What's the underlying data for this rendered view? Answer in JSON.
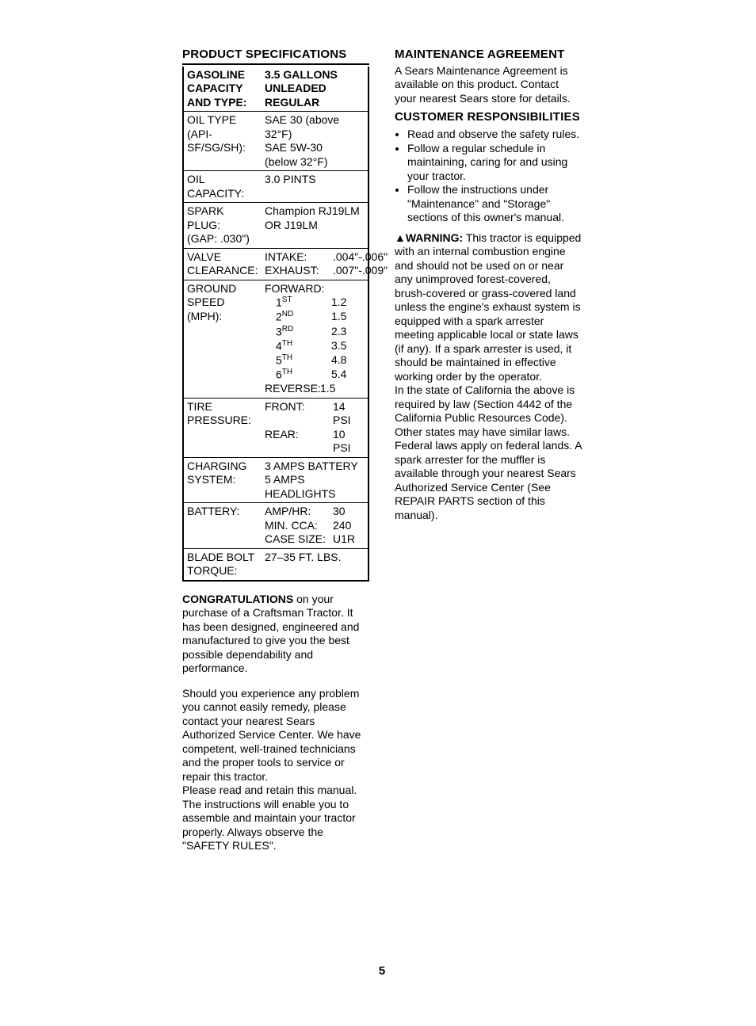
{
  "left": {
    "title": "PRODUCT SPECIFICATIONS",
    "rows": [
      {
        "label": "GASOLINE\nCAPACITY\nAND TYPE:",
        "label_bold": true,
        "value": "3.5 GALLONS\nUNLEADED\nREGULAR",
        "value_bold": true
      },
      {
        "label": "OIL TYPE\n(API-SF/SG/SH):",
        "value": "SAE 30 (above 32°F)\nSAE 5W-30\n(below 32°F)"
      },
      {
        "label": "OIL CAPACITY:",
        "value": "3.0 PINTS"
      },
      {
        "label": "SPARK PLUG:\n(GAP: .030\")",
        "value": "Champion RJ19LM OR J19LM"
      },
      {
        "label": "VALVE\nCLEARANCE:",
        "value_kv": [
          {
            "k": "INTAKE:",
            "v": ".004\"-.006\""
          },
          {
            "k": "EXHAUST:",
            "v": ".007\"-.009\""
          }
        ]
      },
      {
        "label": "GROUND SPEED\n(MPH):",
        "gears": {
          "header": "FORWARD:",
          "rows": [
            {
              "g": "1",
              "sup": "ST",
              "v": "1.2"
            },
            {
              "g": "2",
              "sup": "ND",
              "v": "1.5"
            },
            {
              "g": "3",
              "sup": "RD",
              "v": "2.3"
            },
            {
              "g": "4",
              "sup": "TH",
              "v": "3.5"
            },
            {
              "g": "5",
              "sup": "TH",
              "v": "4.8"
            },
            {
              "g": "6",
              "sup": "TH",
              "v": "5.4"
            }
          ],
          "reverse_label": "REVERSE:",
          "reverse_value": "1.5"
        }
      },
      {
        "label": "TIRE PRESSURE:",
        "value_kv": [
          {
            "k": "FRONT:",
            "v": "14 PSI"
          },
          {
            "k": "REAR:",
            "v": "10 PSI"
          }
        ]
      },
      {
        "label": "CHARGING\nSYSTEM:",
        "value": "3 AMPS BATTERY\n5 AMPS HEADLIGHTS"
      },
      {
        "label": "BATTERY:",
        "value_kv": [
          {
            "k": "AMP/HR:",
            "v": "30"
          },
          {
            "k": "MIN. CCA:",
            "v": "240"
          },
          {
            "k": "CASE SIZE:",
            "v": "U1R"
          }
        ]
      },
      {
        "label": "BLADE BOLT\nTORQUE:",
        "value": "27–35 FT. LBS."
      }
    ],
    "congrats_bold": "CONGRATULATIONS",
    "congrats_rest": " on your purchase of a Craftsman Tractor. It has been designed, engineered and manufactured to give you the best possible dependability and performance.",
    "para2": "Should you experience any problem you cannot easily remedy, please contact your nearest Sears Authorized Service Center. We have competent, well-trained technicians and the proper tools to service or repair this tractor.",
    "para3": "Please read and retain this manual. The instructions will enable you to assemble and maintain your tractor properly. Always observe the \"SAFETY RULES\"."
  },
  "right": {
    "maint_title": "MAINTENANCE AGREEMENT",
    "maint_text": "A Sears Maintenance Agreement is available on this product. Contact your nearest Sears store for details.",
    "cust_title": "CUSTOMER RESPONSIBILITIES",
    "cust_items": [
      "Read and observe the safety rules.",
      "Follow a regular schedule in maintaining, caring for and using your tractor.",
      "Follow the instructions under \"Maintenance\" and \"Storage\" sections of this owner's manual."
    ],
    "warn_icon": "▲",
    "warn_label": "WARNING:",
    "warn_text": " This tractor is equipped with an internal combustion engine and should not be used on or near any unimproved forest-covered, brush-covered or grass-covered land unless the engine's exhaust system is equipped with a spark arrester meeting applicable local or state laws (if any). If a spark arrester is used, it should be maintained in effective working order by the operator.",
    "warn_text2": "In the state of California the above is required by law (Section 4442 of the California Public Resources Code). Other states may have similar laws. Federal laws apply on federal lands. A spark arrester for the muffler is available through your nearest Sears Authorized Service Center (See REPAIR PARTS section of this manual)."
  },
  "page_number": "5"
}
